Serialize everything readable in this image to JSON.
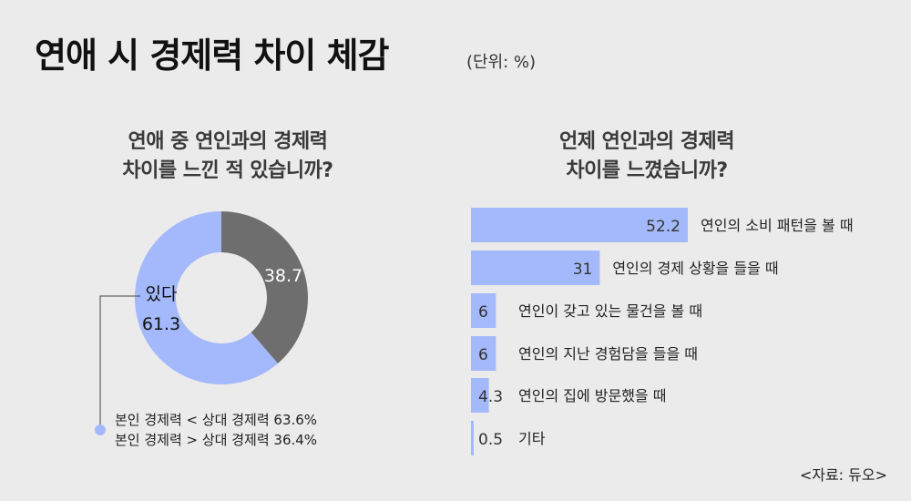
{
  "header": {
    "title": "연애 시 경제력 차이 체감",
    "unit": "(단위: %)"
  },
  "left_question": [
    "연애 중 연인과의 경제력",
    "차이를 느낀 적 있습니까?"
  ],
  "right_question": [
    "언제 연인과의 경제력",
    "차이를 느꼈습니까?"
  ],
  "donut_callout": {
    "label": "있다",
    "value": "61.3"
  },
  "notes": [
    "본인 경제력 < 상대 경제력 63.6%",
    "본인 경제력 > 상대 경제력 36.4%"
  ],
  "source": "<자료: 듀오>",
  "colors": {
    "accent": "#a4b9fb",
    "dark": "#6e6e6e",
    "background": "#ebebeb"
  },
  "chart_data": [
    {
      "type": "pie",
      "categories": [
        "있다",
        ""
      ],
      "values": [
        61.3,
        38.7
      ]
    },
    {
      "type": "bar",
      "orientation": "horizontal",
      "categories": [
        "연인의 소비 패턴을 볼 때",
        "연인의 경제 상황을 들을 때",
        "연인이 갖고 있는 물건을 볼 때",
        "연인의 지난 경험담을 들을 때",
        "연인의 집에 방문했을 때",
        "기타"
      ],
      "values": [
        52.2,
        31,
        6,
        6,
        4.3,
        0.5
      ]
    }
  ]
}
